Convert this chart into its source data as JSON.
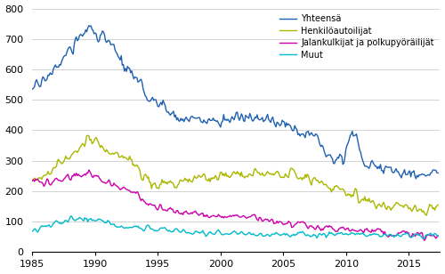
{
  "title": "",
  "xlabel": "",
  "ylabel": "",
  "ylim": [
    0,
    800
  ],
  "xlim": [
    1985.0,
    2017.5
  ],
  "yticks": [
    0,
    100,
    200,
    300,
    400,
    500,
    600,
    700,
    800
  ],
  "xticks": [
    1985,
    1990,
    1995,
    2000,
    2005,
    2010,
    2015
  ],
  "colors": {
    "Yhteensä": "#2060b0",
    "Henkilöautoilijat": "#aab800",
    "Jalankulkijat ja polkupyöräilijät": "#cc00aa",
    "Muut": "#00bbcc"
  },
  "legend_labels": [
    "Yhteensä",
    "Henkilöautoilijat",
    "Jalankulkijat ja polkupyöräilijät",
    "Muut"
  ],
  "background_color": "#ffffff",
  "grid_color": "#cccccc"
}
